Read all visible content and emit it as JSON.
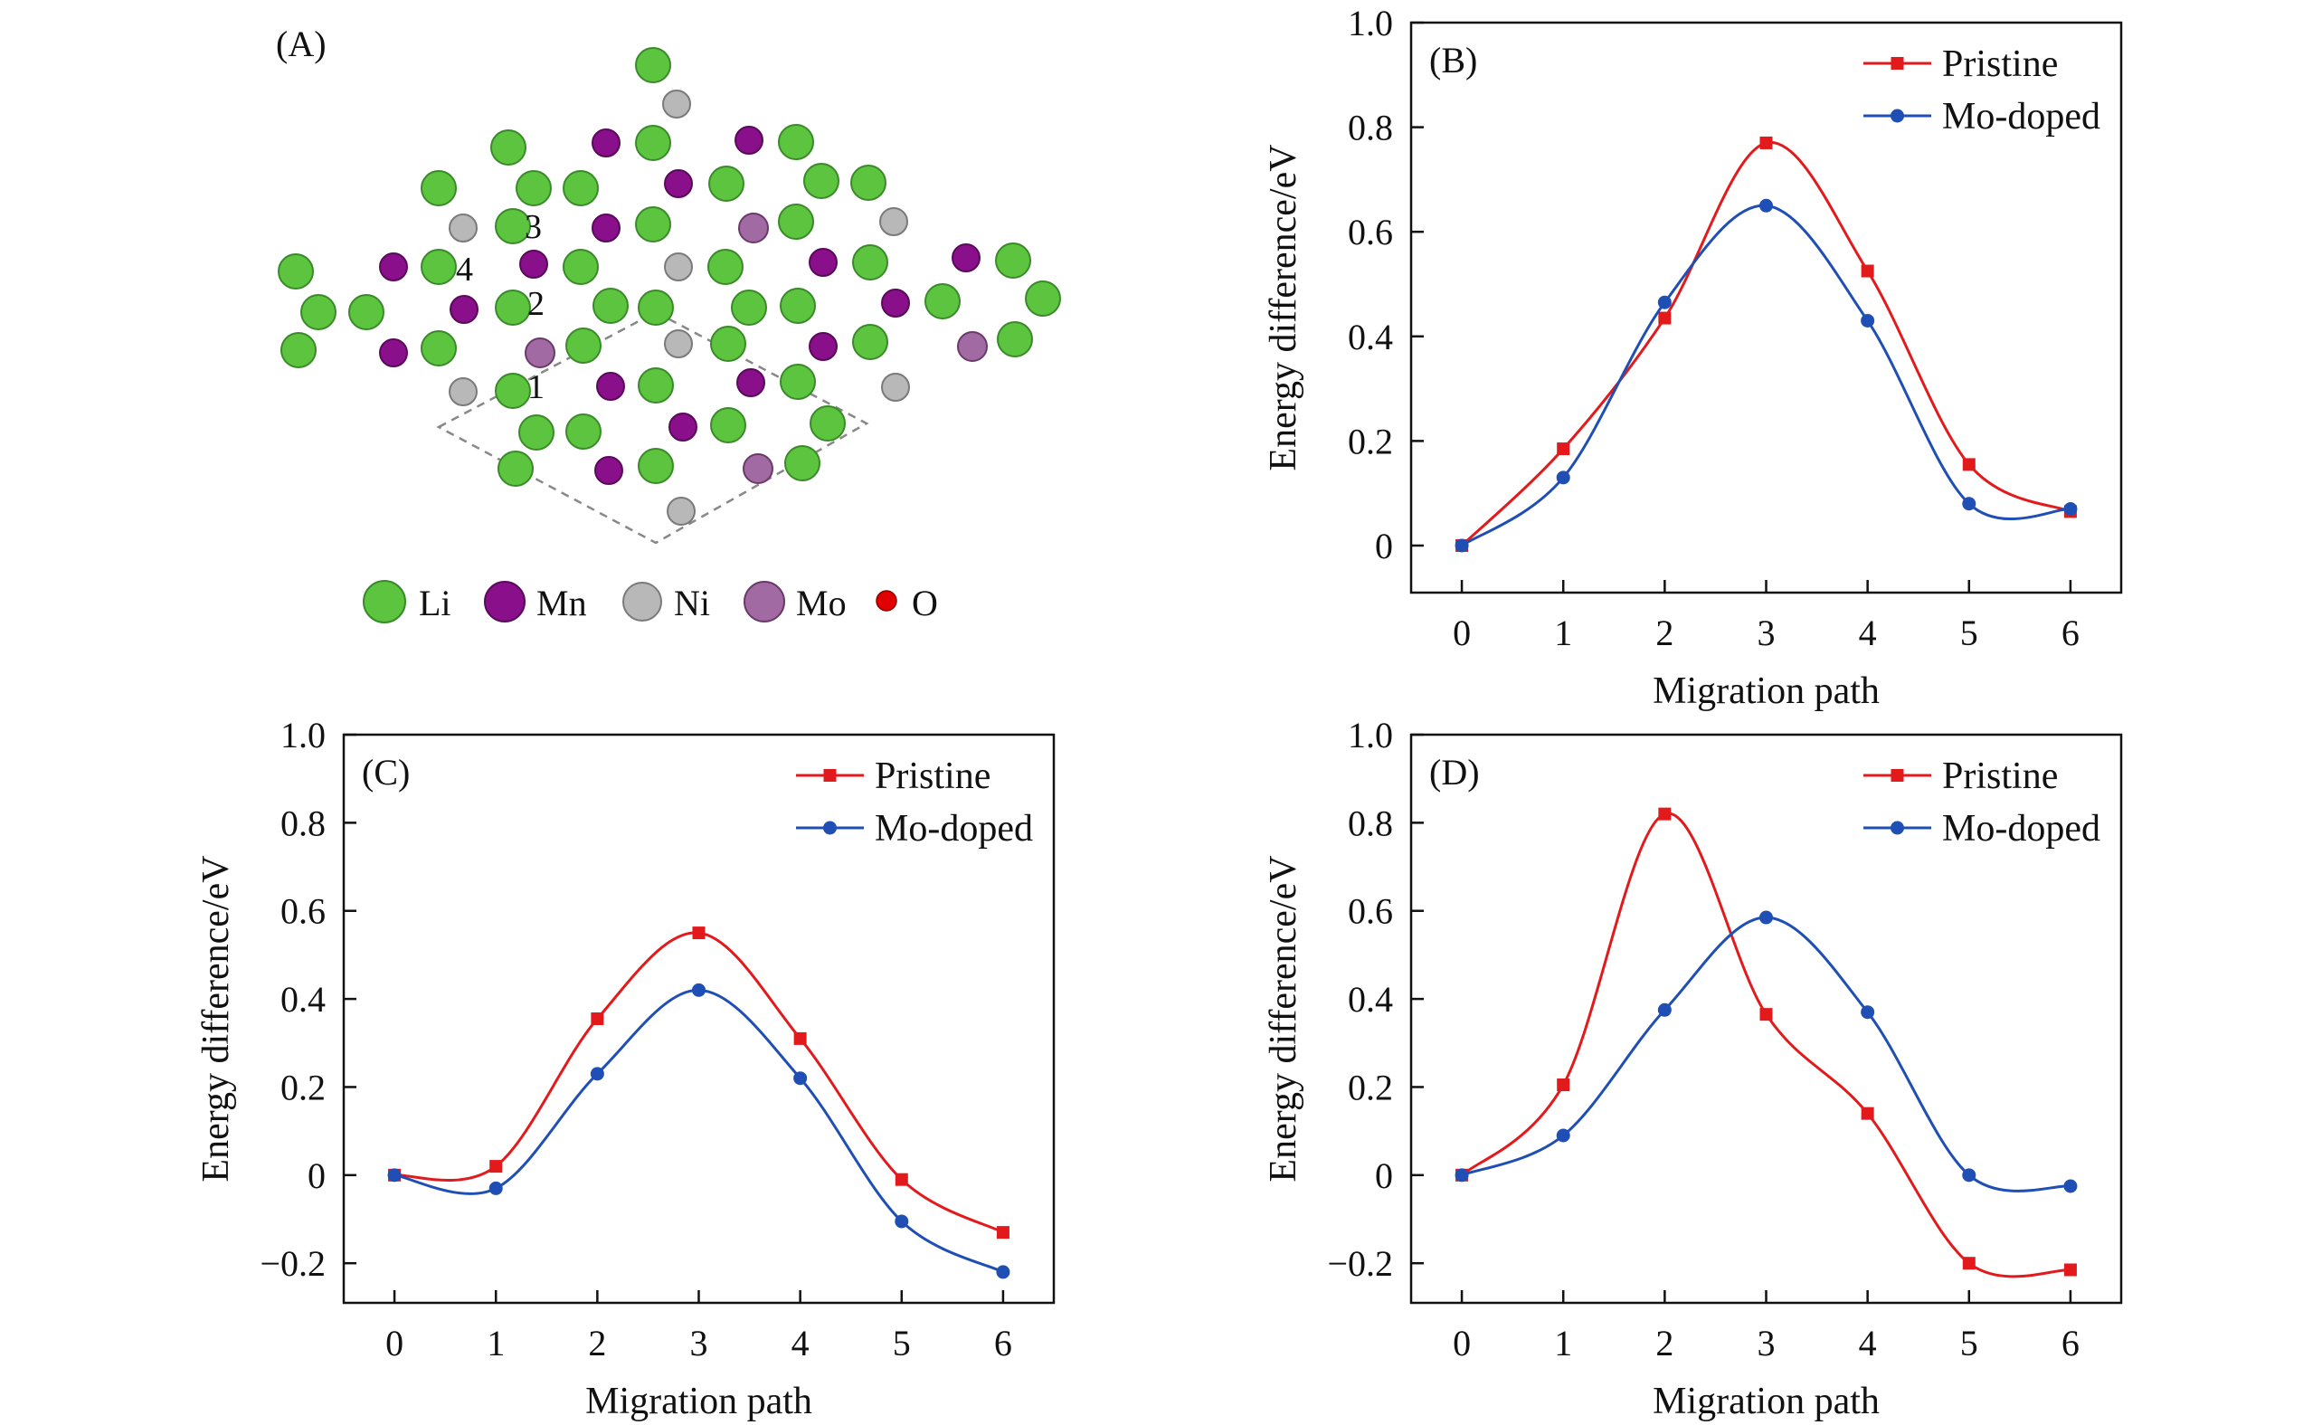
{
  "panel_a": {
    "tag": "(A)",
    "site_labels": [
      "1",
      "2",
      "3",
      "4"
    ],
    "legend": [
      {
        "label": "Li",
        "color": "#5cc43e"
      },
      {
        "label": "Mn",
        "color": "#8a0f8a"
      },
      {
        "label": "Ni",
        "color": "#b0b0b0"
      },
      {
        "label": "Mo",
        "color": "#a26aa2"
      },
      {
        "label": "O",
        "color": "#e00000"
      }
    ]
  },
  "chart_data": [
    {
      "panel": "B",
      "tag": "(B)",
      "type": "line",
      "title": "",
      "xlabel": "Migration path",
      "ylabel": "Energy difference/eV",
      "xlim": [
        -0.5,
        6.5
      ],
      "ylim": [
        -0.09,
        1.0
      ],
      "xticks": [
        "0",
        "1",
        "2",
        "3",
        "4",
        "5",
        "6"
      ],
      "yticks": [
        "0",
        "0.2",
        "0.4",
        "0.6",
        "0.8",
        "1.0"
      ],
      "x": [
        0,
        1,
        2,
        3,
        4,
        5,
        6
      ],
      "series": [
        {
          "name": "Pristine",
          "color": "#e31a1c",
          "marker": "square",
          "values": [
            0.0,
            0.185,
            0.435,
            0.77,
            0.525,
            0.155,
            0.065
          ]
        },
        {
          "name": "Mo-doped",
          "color": "#1f4fb4",
          "marker": "circle",
          "values": [
            0.0,
            0.13,
            0.465,
            0.65,
            0.43,
            0.08,
            0.07
          ]
        }
      ],
      "legend_position": "top-right"
    },
    {
      "panel": "C",
      "tag": "(C)",
      "type": "line",
      "title": "",
      "xlabel": "Migration path",
      "ylabel": "Energy difference/eV",
      "xlim": [
        -0.5,
        6.5
      ],
      "ylim": [
        -0.29,
        1.0
      ],
      "xticks": [
        "0",
        "1",
        "2",
        "3",
        "4",
        "5",
        "6"
      ],
      "yticks": [
        "−0.2",
        "0",
        "0.2",
        "0.4",
        "0.6",
        "0.8",
        "1.0"
      ],
      "x": [
        0,
        1,
        2,
        3,
        4,
        5,
        6
      ],
      "series": [
        {
          "name": "Pristine",
          "color": "#e31a1c",
          "marker": "square",
          "values": [
            0.0,
            0.02,
            0.355,
            0.55,
            0.31,
            -0.01,
            -0.13
          ]
        },
        {
          "name": "Mo-doped",
          "color": "#1f4fb4",
          "marker": "circle",
          "values": [
            0.0,
            -0.03,
            0.23,
            0.42,
            0.22,
            -0.105,
            -0.22
          ]
        }
      ],
      "legend_position": "top-right"
    },
    {
      "panel": "D",
      "tag": "(D)",
      "type": "line",
      "title": "",
      "xlabel": "Migration path",
      "ylabel": "Energy difference/eV",
      "xlim": [
        -0.5,
        6.5
      ],
      "ylim": [
        -0.29,
        1.0
      ],
      "xticks": [
        "0",
        "1",
        "2",
        "3",
        "4",
        "5",
        "6"
      ],
      "yticks": [
        "−0.2",
        "0",
        "0.2",
        "0.4",
        "0.6",
        "0.8",
        "1.0"
      ],
      "x": [
        0,
        1,
        2,
        3,
        4,
        5,
        6
      ],
      "series": [
        {
          "name": "Pristine",
          "color": "#e31a1c",
          "marker": "square",
          "values": [
            0.0,
            0.205,
            0.82,
            0.365,
            0.14,
            -0.2,
            -0.215
          ]
        },
        {
          "name": "Mo-doped",
          "color": "#1f4fb4",
          "marker": "circle",
          "values": [
            0.0,
            0.09,
            0.375,
            0.585,
            0.37,
            0.0,
            -0.025
          ]
        }
      ],
      "legend_position": "top-right"
    }
  ]
}
